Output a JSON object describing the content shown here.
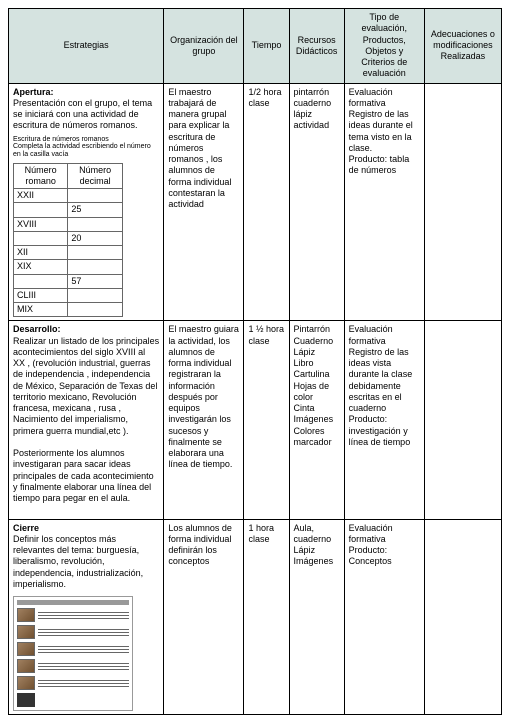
{
  "headers": {
    "c1": "Estrategias",
    "c2": "Organización del grupo",
    "c3": "Tiempo",
    "c4": "Recursos Didácticos",
    "c5": "Tipo de evaluación, Productos, Objetos y Criterios de evaluación",
    "c6": "Adecuaciones o modificaciones Realizadas"
  },
  "apertura": {
    "title": "Apertura:",
    "body": "Presentación con el grupo, el tema se iniciará con una actividad de escritura de números romanos.",
    "note_title": "Escritura de números romanos",
    "note_body": "Completa la actividad escribiendo el número en la casilla vacía",
    "roman_headers": {
      "r": "Número romano",
      "d": "Número decimal"
    },
    "roman_rows": [
      {
        "r": "XXII",
        "d": ""
      },
      {
        "r": "",
        "d": "25"
      },
      {
        "r": "XVIII",
        "d": ""
      },
      {
        "r": "",
        "d": "20"
      },
      {
        "r": "XII",
        "d": ""
      },
      {
        "r": "XIX",
        "d": ""
      },
      {
        "r": "",
        "d": "57"
      },
      {
        "r": "CLIII",
        "d": ""
      },
      {
        "r": "MIX",
        "d": ""
      }
    ],
    "org": "El maestro trabajará de manera grupal para explicar la escritura de números romanos , los alumnos de forma individual contestaran la actividad",
    "tiempo": "1/2 hora clase",
    "recursos": "pintarrón\ncuaderno\nlápiz\nactividad",
    "eval": "Evaluación formativa\nRegistro de las ideas  durante el tema visto en la clase.\nProducto: tabla de números"
  },
  "desarrollo": {
    "title": "Desarrollo:",
    "body": "Realizar un listado de los principales acontecimientos del siglo XVIII al XX , (revolución industrial, guerras de independencia , independencia de México, Separación de Texas del territorio mexicano, Revolución francesa, mexicana , rusa ,  Nacimiento del imperialismo, primera guerra mundial,etc ).",
    "body2": "Posteriormente los alumnos investigaran para sacar ideas principales  de cada acontecimiento y finalmente elaborar una línea del tiempo para pegar en el aula.",
    "org": "El maestro guiara la actividad, los alumnos de forma individual registraran la información después por equipos investigarán los sucesos y finalmente se elaborara una línea de tiempo.",
    "tiempo": "1 ½ hora clase",
    "recursos": "Pintarrón\nCuaderno\nLápiz\nLibro\nCartulina\nHojas de color\nCinta\nImágenes\nColores\nmarcador",
    "eval": "Evaluación formativa\nRegistro de las ideas vista durante la clase debidamente escritas en el cuaderno\nProducto: investigación y línea de tiempo"
  },
  "cierre": {
    "title": "Cierre",
    "body": " Definir los conceptos más relevantes del tema: burguesía, liberalismo, revolución, independencia, industrialización, imperialismo.",
    "org": "Los alumnos de forma individual definirán los conceptos",
    "tiempo": "1 hora clase",
    "recursos": "Aula, cuaderno Lápiz Imágenes",
    "eval": "Evaluación formativa\nProducto: Conceptos"
  }
}
